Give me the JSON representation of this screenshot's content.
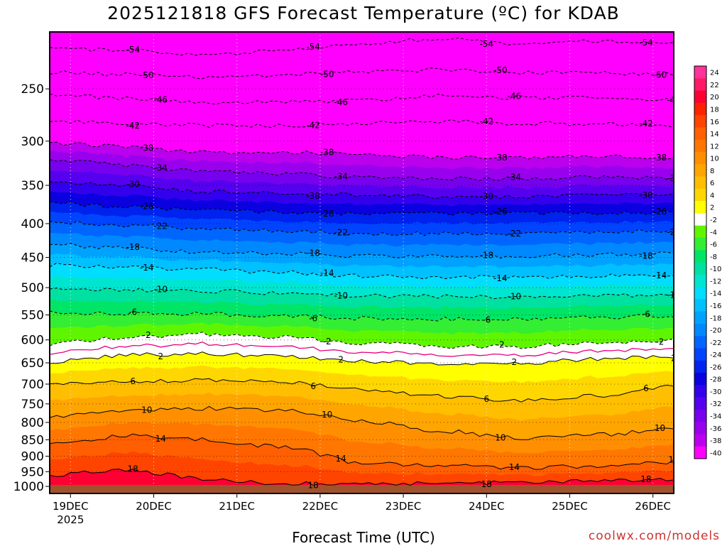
{
  "chart_data": {
    "type": "heatmap",
    "title": "2025121818 GFS Forecast Temperature (ºC) for KDAB",
    "xlabel": "Forecast Time (UTC)",
    "ylabel": "",
    "credit": "coolwx.com/models",
    "x_ticks": [
      "19DEC",
      "20DEC",
      "21DEC",
      "22DEC",
      "23DEC",
      "24DEC",
      "25DEC",
      "26DEC"
    ],
    "x_year": "2025",
    "y_ticks": [
      250,
      300,
      350,
      400,
      450,
      500,
      550,
      600,
      650,
      700,
      750,
      800,
      850,
      900,
      950,
      1000
    ],
    "y_scale": "log",
    "y_range_hPa": [
      205,
      1025
    ],
    "x_range_days": [
      -0.25,
      7.25
    ],
    "grid": "dotted",
    "colorbar": {
      "placement": "right",
      "levels": [
        24,
        22,
        20,
        18,
        16,
        14,
        12,
        10,
        8,
        6,
        4,
        2,
        -2,
        -4,
        -6,
        -8,
        -10,
        -12,
        -14,
        -16,
        -18,
        -20,
        -22,
        -24,
        -26,
        -28,
        -30,
        -32,
        -34,
        -36,
        -38,
        -40
      ],
      "colors": [
        "#ff3399",
        "#ff1a66",
        "#ff0033",
        "#ff2200",
        "#ff4400",
        "#ff5f00",
        "#ff7700",
        "#ff8f00",
        "#ffa500",
        "#ffbe00",
        "#ffd700",
        "#ffff00",
        "#ffffff",
        "#5ff500",
        "#33ee33",
        "#00e566",
        "#00e0a0",
        "#00e5d0",
        "#00ddff",
        "#00c0ff",
        "#00a2ff",
        "#0088ff",
        "#0066ff",
        "#0044ff",
        "#0022ee",
        "#0a00e0",
        "#3300ee",
        "#5500ee",
        "#7700ee",
        "#9900ee",
        "#bb00ee",
        "#ff00ff"
      ]
    },
    "contour_lines": [
      {
        "value": -54,
        "p": [
          218,
          218,
          222,
          218,
          214,
          210,
          214,
          212,
          214
        ]
      },
      {
        "value": -50,
        "p": [
          236,
          238,
          240,
          238,
          236,
          234,
          236,
          236,
          238
        ]
      },
      {
        "value": -46,
        "p": [
          256,
          258,
          262,
          262,
          260,
          256,
          258,
          258,
          260
        ]
      },
      {
        "value": -42,
        "p": [
          280,
          282,
          284,
          284,
          282,
          280,
          282,
          282,
          284
        ]
      },
      {
        "value": -38,
        "p": [
          302,
          306,
          312,
          312,
          314,
          318,
          318,
          316,
          320
        ]
      },
      {
        "value": -34,
        "p": [
          320,
          326,
          334,
          336,
          340,
          342,
          342,
          340,
          342
        ]
      },
      {
        "value": -30,
        "p": [
          345,
          350,
          358,
          360,
          362,
          364,
          364,
          362,
          362
        ]
      },
      {
        "value": -26,
        "p": [
          372,
          378,
          382,
          384,
          386,
          386,
          386,
          386,
          384
        ]
      },
      {
        "value": -22,
        "p": [
          398,
          402,
          408,
          410,
          414,
          414,
          414,
          412,
          410
        ]
      },
      {
        "value": -18,
        "p": [
          430,
          436,
          442,
          444,
          448,
          448,
          448,
          446,
          444
        ]
      },
      {
        "value": -14,
        "p": [
          462,
          466,
          470,
          474,
          480,
          482,
          482,
          480,
          478
        ]
      },
      {
        "value": -10,
        "p": [
          500,
          504,
          506,
          510,
          514,
          516,
          516,
          514,
          512
        ]
      },
      {
        "value": -6,
        "p": [
          545,
          548,
          548,
          552,
          556,
          558,
          558,
          554,
          552
        ]
      },
      {
        "value": -2,
        "p": [
          608,
          595,
          588,
          594,
          606,
          614,
          614,
          606,
          600
        ]
      },
      {
        "value": 2,
        "p": [
          648,
          632,
          630,
          636,
          646,
          652,
          650,
          642,
          636
        ]
      },
      {
        "value": 6,
        "p": [
          700,
          692,
          690,
          696,
          712,
          730,
          742,
          730,
          705
        ]
      },
      {
        "value": 10,
        "p": [
          782,
          768,
          762,
          766,
          796,
          824,
          844,
          836,
          820
        ]
      },
      {
        "value": 14,
        "p": [
          862,
          838,
          850,
          872,
          920,
          930,
          938,
          932,
          918
        ]
      },
      {
        "value": 18,
        "p": [
          960,
          945,
          975,
          990,
          988,
          990,
          985,
          980,
          975
        ]
      }
    ]
  }
}
